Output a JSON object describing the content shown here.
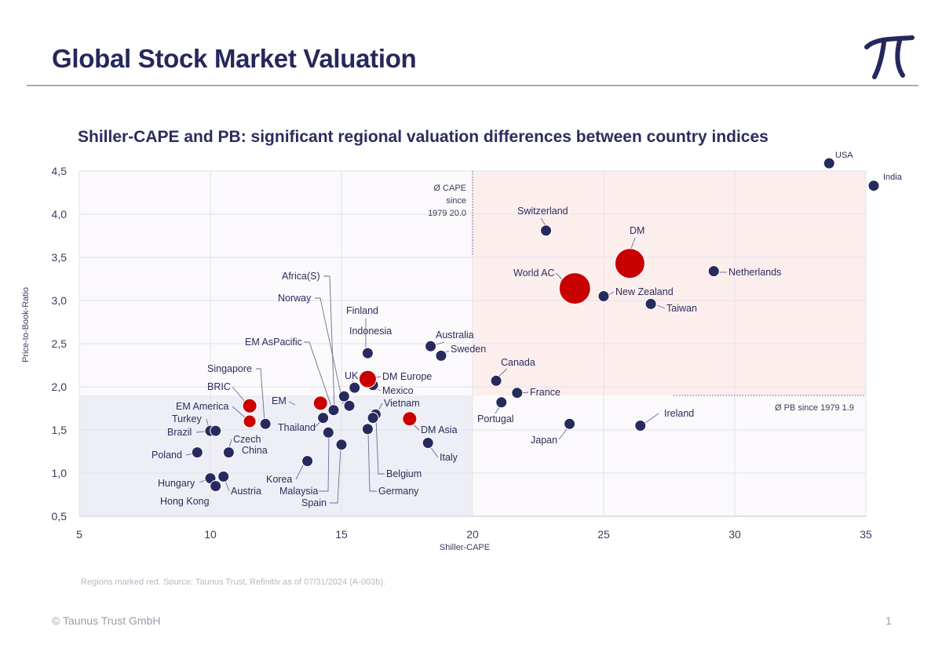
{
  "header": {
    "title": "Global Stock Market Valuation",
    "logo_name": "taunus-trust-pi-logo"
  },
  "colors": {
    "navy": "#272a5e",
    "red": "#c90000",
    "grid": "#e2e2e8",
    "upper_right_shade": "#fdeeee",
    "lower_left_shade": "#eeeef6",
    "plot_bg": "#fbf9fb"
  },
  "footer": {
    "source": "Regions marked red. Source: Taunus Trust, Refinitiv as of 07/31/2024 (A-003b).",
    "copyright": "© Taunus Trust GmbH",
    "page_number": "1"
  },
  "chart_data": {
    "type": "scatter",
    "title": "Shiller-CAPE and PB: significant regional valuation differences between country indices",
    "xlabel": "Shiller-CAPE",
    "ylabel": "Price-to-Book-Ratio",
    "xlim": [
      5,
      35
    ],
    "ylim": [
      0.5,
      4.5
    ],
    "xticks": [
      "5",
      "10",
      "15",
      "20",
      "25",
      "30",
      "35"
    ],
    "yticks": [
      "0,5",
      "1,0",
      "1,5",
      "2,0",
      "2,5",
      "3,0",
      "3,5",
      "4,0",
      "4,5"
    ],
    "grid": true,
    "reference_lines": [
      {
        "axis": "x",
        "value": 20.0,
        "label_lines": [
          "Ø CAPE",
          "since",
          "1979 20.0"
        ]
      },
      {
        "axis": "y",
        "value": 1.9,
        "label": "Ø PB since 1979 1.9"
      }
    ],
    "points": [
      {
        "name": "USA",
        "x": 33.6,
        "y": 4.59,
        "region": false
      },
      {
        "name": "India",
        "x": 35.3,
        "y": 4.33,
        "region": false
      },
      {
        "name": "Switzerland",
        "x": 22.8,
        "y": 3.81,
        "region": false
      },
      {
        "name": "DM",
        "x": 26.0,
        "y": 3.43,
        "region": true
      },
      {
        "name": "Netherlands",
        "x": 29.2,
        "y": 3.34,
        "region": false
      },
      {
        "name": "World AC",
        "x": 23.9,
        "y": 3.14,
        "region": true
      },
      {
        "name": "New Zealand",
        "x": 25.0,
        "y": 3.05,
        "region": false
      },
      {
        "name": "Taiwan",
        "x": 26.8,
        "y": 2.96,
        "region": false
      },
      {
        "name": "Australia",
        "x": 18.4,
        "y": 2.47,
        "region": false
      },
      {
        "name": "Sweden",
        "x": 18.8,
        "y": 2.36,
        "region": false
      },
      {
        "name": "Canada",
        "x": 20.9,
        "y": 2.07,
        "region": false
      },
      {
        "name": "France",
        "x": 21.7,
        "y": 1.93,
        "region": false
      },
      {
        "name": "Portugal",
        "x": 21.1,
        "y": 1.82,
        "region": false
      },
      {
        "name": "Ireland",
        "x": 26.4,
        "y": 1.55,
        "region": false
      },
      {
        "name": "Japan",
        "x": 23.7,
        "y": 1.57,
        "region": false
      },
      {
        "name": "Finland",
        "x": 16.0,
        "y": 2.39,
        "region": false
      },
      {
        "name": "Indonesia",
        "x": 16.0,
        "y": 2.39,
        "region": false
      },
      {
        "name": "UK",
        "x": 15.5,
        "y": 1.99,
        "region": false
      },
      {
        "name": "DM Europe",
        "x": 16.0,
        "y": 2.09,
        "region": true
      },
      {
        "name": "Mexico",
        "x": 16.2,
        "y": 2.02,
        "region": false
      },
      {
        "name": "Vietnam",
        "x": 16.3,
        "y": 1.68,
        "region": false
      },
      {
        "name": "Africa(S)",
        "x": 15.1,
        "y": 1.89,
        "region": false
      },
      {
        "name": "Norway",
        "x": 15.3,
        "y": 1.78,
        "region": false
      },
      {
        "name": "EM AsPacific",
        "x": 14.7,
        "y": 1.73,
        "region": false
      },
      {
        "name": "EM",
        "x": 14.2,
        "y": 1.81,
        "region": true
      },
      {
        "name": "Singapore",
        "x": 12.1,
        "y": 1.57,
        "region": false
      },
      {
        "name": "BRIC",
        "x": 11.5,
        "y": 1.78,
        "region": true
      },
      {
        "name": "EM America",
        "x": 11.5,
        "y": 1.6,
        "region": true
      },
      {
        "name": "Thailand",
        "x": 14.3,
        "y": 1.64,
        "region": false
      },
      {
        "name": "Turkey",
        "x": 10.0,
        "y": 1.49,
        "region": false
      },
      {
        "name": "Brazil",
        "x": 10.2,
        "y": 1.49,
        "region": false
      },
      {
        "name": "Poland",
        "x": 9.5,
        "y": 1.24,
        "region": false
      },
      {
        "name": "Czech",
        "x": 10.7,
        "y": 1.24,
        "region": false
      },
      {
        "name": "China",
        "x": 10.7,
        "y": 1.24,
        "region": false
      },
      {
        "name": "Hungary",
        "x": 10.0,
        "y": 0.94,
        "region": false
      },
      {
        "name": "Hong Kong",
        "x": 10.2,
        "y": 0.85,
        "region": false
      },
      {
        "name": "Austria",
        "x": 10.5,
        "y": 0.96,
        "region": false
      },
      {
        "name": "Korea",
        "x": 13.7,
        "y": 1.14,
        "region": false
      },
      {
        "name": "Malaysia",
        "x": 14.5,
        "y": 1.47,
        "region": false
      },
      {
        "name": "Spain",
        "x": 15.0,
        "y": 1.33,
        "region": false
      },
      {
        "name": "DM Asia",
        "x": 17.6,
        "y": 1.63,
        "region": true
      },
      {
        "name": "Italy",
        "x": 18.3,
        "y": 1.35,
        "region": false
      },
      {
        "name": "Belgium",
        "x": 16.2,
        "y": 1.64,
        "region": false
      },
      {
        "name": "Germany",
        "x": 16.0,
        "y": 1.51,
        "region": false
      }
    ]
  }
}
